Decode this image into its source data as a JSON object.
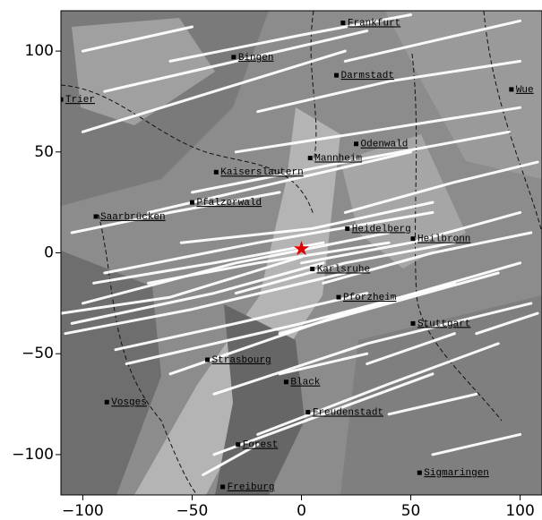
{
  "map": {
    "xlim": [
      -110,
      110
    ],
    "ylim": [
      -120,
      120
    ],
    "xticks": [
      {
        "value": -100,
        "label": "−100"
      },
      {
        "value": -50,
        "label": "−50"
      },
      0,
      50,
      100
    ],
    "yticks": [
      {
        "value": -100,
        "label": "−100"
      },
      {
        "value": -50,
        "label": "−50"
      },
      0,
      50,
      100
    ],
    "center": {
      "x": 0,
      "y": 2
    },
    "cities": [
      {
        "name": "Frankfurt",
        "x": 19,
        "y": 114
      },
      {
        "name": "Bingen",
        "x": -31,
        "y": 97
      },
      {
        "name": "Darmstadt",
        "x": 16,
        "y": 88
      },
      {
        "name": "Trier",
        "x": -110,
        "y": 76
      },
      {
        "name": "Wue",
        "x": 96,
        "y": 81
      },
      {
        "name": "Odenwald",
        "x": 25,
        "y": 54
      },
      {
        "name": "Mannheim",
        "x": 4,
        "y": 47
      },
      {
        "name": "Kaiserslautern",
        "x": -39,
        "y": 40
      },
      {
        "name": "Pfälzerwald",
        "x": -50,
        "y": 25
      },
      {
        "name": "Saarbrücken",
        "x": -94,
        "y": 18
      },
      {
        "name": "Heidelberg",
        "x": 21,
        "y": 12
      },
      {
        "name": "Heilbronn",
        "x": 51,
        "y": 7
      },
      {
        "name": "Karlsruhe",
        "x": 5,
        "y": -8
      },
      {
        "name": "Pforzheim",
        "x": 17,
        "y": -22
      },
      {
        "name": "Stuttgart",
        "x": 51,
        "y": -35
      },
      {
        "name": "Strasbourg",
        "x": -43,
        "y": -53
      },
      {
        "name": "Black",
        "x": -7,
        "y": -64
      },
      {
        "name": "Freudenstadt",
        "x": 3,
        "y": -79
      },
      {
        "name": "Vosges",
        "x": -89,
        "y": -74
      },
      {
        "name": "Forest",
        "x": -29,
        "y": -95
      },
      {
        "name": "Freiburg",
        "x": -36,
        "y": -116
      },
      {
        "name": "Sigmaringen",
        "x": 54,
        "y": -109
      }
    ],
    "tracks": [
      {
        "x": [
          -105,
          -40,
          10
        ],
        "y": [
          -35,
          -20,
          -5
        ]
      },
      {
        "x": [
          -100,
          -30,
          40
        ],
        "y": [
          -25,
          -5,
          10
        ]
      },
      {
        "x": [
          -108,
          -50,
          20
        ],
        "y": [
          -40,
          -28,
          -10
        ]
      },
      {
        "x": [
          -90,
          -20,
          60
        ],
        "y": [
          -10,
          5,
          20
        ]
      },
      {
        "x": [
          -80,
          0,
          70
        ],
        "y": [
          -55,
          -35,
          -15
        ]
      },
      {
        "x": [
          -60,
          20,
          100
        ],
        "y": [
          -60,
          -30,
          -5
        ]
      },
      {
        "x": [
          -40,
          30,
          105
        ],
        "y": [
          -70,
          -45,
          -25
        ]
      },
      {
        "x": [
          -20,
          40,
          90
        ],
        "y": [
          -90,
          -65,
          -45
        ]
      },
      {
        "x": [
          -70,
          -10,
          50
        ],
        "y": [
          20,
          35,
          50
        ]
      },
      {
        "x": [
          -50,
          20,
          95
        ],
        "y": [
          30,
          45,
          60
        ]
      },
      {
        "x": [
          -30,
          30,
          100
        ],
        "y": [
          50,
          60,
          72
        ]
      },
      {
        "x": [
          -100,
          -40,
          20
        ],
        "y": [
          60,
          80,
          100
        ]
      },
      {
        "x": [
          -90,
          -30,
          30
        ],
        "y": [
          80,
          95,
          110
        ]
      },
      {
        "x": [
          -60,
          0,
          50
        ],
        "y": [
          95,
          108,
          118
        ]
      },
      {
        "x": [
          -20,
          40,
          100
        ],
        "y": [
          70,
          85,
          95
        ]
      },
      {
        "x": [
          -105,
          -60,
          -10
        ],
        "y": [
          10,
          20,
          30
        ]
      },
      {
        "x": [
          -95,
          -40,
          10
        ],
        "y": [
          -15,
          -5,
          5
        ]
      },
      {
        "x": [
          -85,
          -30,
          30
        ],
        "y": [
          -48,
          -35,
          -20
        ]
      },
      {
        "x": [
          10,
          60,
          105
        ],
        "y": [
          -15,
          0,
          10
        ]
      },
      {
        "x": [
          20,
          70,
          108
        ],
        "y": [
          20,
          35,
          45
        ]
      },
      {
        "x": [
          0,
          50,
          100
        ],
        "y": [
          -5,
          5,
          20
        ]
      },
      {
        "x": [
          -10,
          40,
          90
        ],
        "y": [
          -40,
          -25,
          -10
        ]
      },
      {
        "x": [
          30,
          70
        ],
        "y": [
          -55,
          -40
        ]
      },
      {
        "x": [
          -40,
          10,
          60
        ],
        "y": [
          -100,
          -80,
          -60
        ]
      },
      {
        "x": [
          40,
          80
        ],
        "y": [
          -80,
          -70
        ]
      },
      {
        "x": [
          60,
          100
        ],
        "y": [
          -100,
          -90
        ]
      },
      {
        "x": [
          -45,
          -20
        ],
        "y": [
          -110,
          -95
        ]
      },
      {
        "x": [
          -110,
          -60,
          0
        ],
        "y": [
          -30,
          -22,
          -2
        ]
      },
      {
        "x": [
          -70,
          -20,
          40
        ],
        "y": [
          -15,
          -5,
          5
        ]
      },
      {
        "x": [
          -55,
          5,
          60
        ],
        "y": [
          5,
          12,
          25
        ]
      },
      {
        "x": [
          80,
          108
        ],
        "y": [
          -40,
          -30
        ]
      },
      {
        "x": [
          -100,
          -50
        ],
        "y": [
          100,
          112
        ]
      },
      {
        "x": [
          20,
          60,
          100
        ],
        "y": [
          95,
          105,
          115
        ]
      },
      {
        "x": [
          -30,
          20,
          70
        ],
        "y": [
          -20,
          -5,
          5
        ]
      },
      {
        "x": [
          -10,
          30
        ],
        "y": [
          -60,
          -50
        ]
      }
    ]
  }
}
